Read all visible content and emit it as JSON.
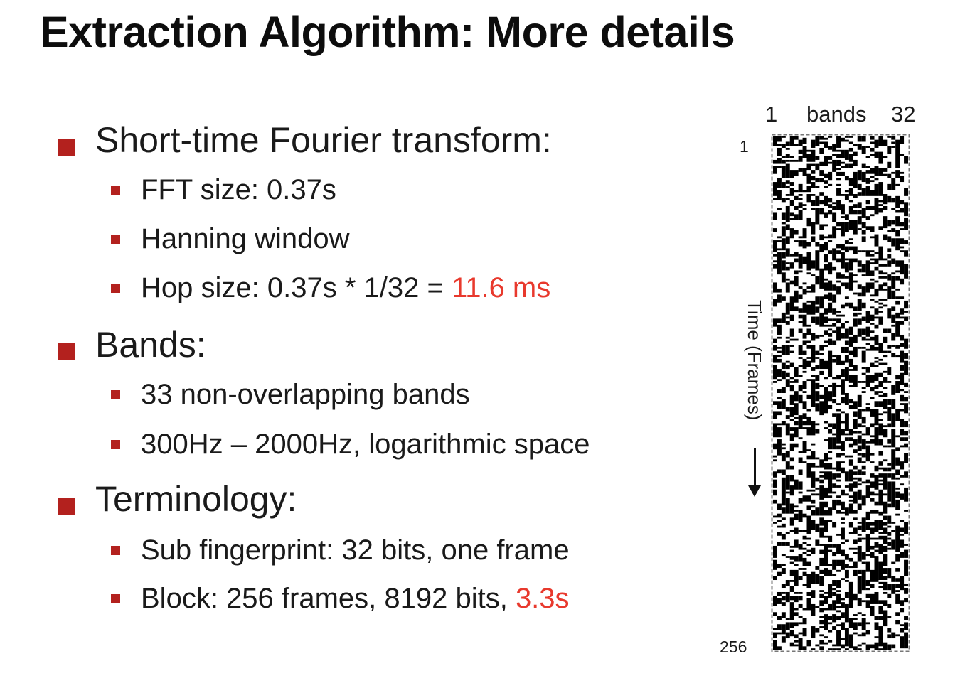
{
  "slide": {
    "title": "Extraction Algorithm: More details",
    "colors": {
      "bullet": "#b3211e",
      "highlight": "#e8392d",
      "text": "#1a1a1a"
    },
    "sections": [
      {
        "heading": "Short-time Fourier transform:",
        "items": [
          {
            "text": "FFT size: 0.37s",
            "highlight": ""
          },
          {
            "text": "Hanning window",
            "highlight": ""
          },
          {
            "text": "Hop size: 0.37s * 1/32 = ",
            "highlight": "11.6 ms"
          }
        ]
      },
      {
        "heading": "Bands:",
        "items": [
          {
            "text": "33 non-overlapping bands",
            "highlight": ""
          },
          {
            "text": "300Hz – 2000Hz, logarithmic space",
            "highlight": ""
          }
        ]
      },
      {
        "heading": "Terminology:",
        "items": [
          {
            "text": "Sub fingerprint: 32 bits, one frame",
            "highlight": ""
          },
          {
            "text": "Block: 256 frames, 8192 bits, ",
            "highlight": "3.3s"
          }
        ]
      }
    ]
  },
  "fingerprint_figure": {
    "top_left_label": "1",
    "top_center_label": "bands",
    "top_right_label": "32",
    "row_start_label": "1",
    "row_end_label": "256",
    "axis_label": "Time (Frames)",
    "pattern": "binary black/white bit matrix"
  }
}
